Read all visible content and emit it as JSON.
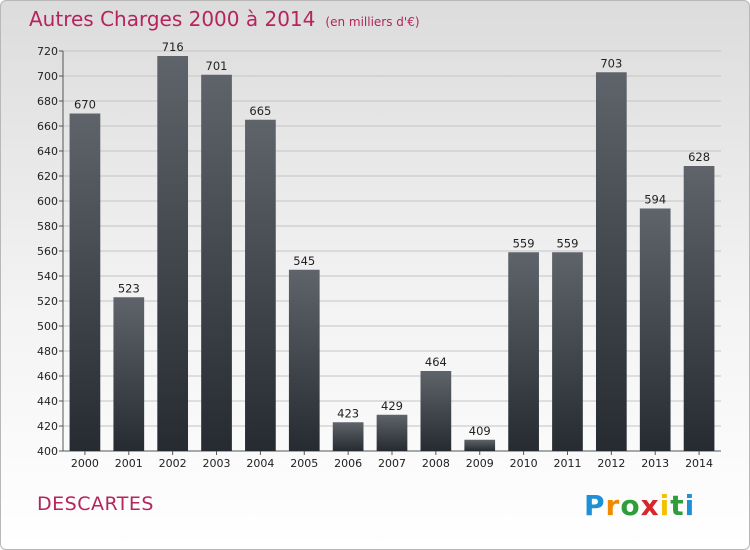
{
  "chart_data": {
    "type": "bar",
    "title": "Autres Charges 2000 à 2014",
    "subtitle": "(en milliers d'€)",
    "categories": [
      "2000",
      "2001",
      "2002",
      "2003",
      "2004",
      "2005",
      "2006",
      "2007",
      "2008",
      "2009",
      "2010",
      "2011",
      "2012",
      "2013",
      "2014"
    ],
    "values": [
      670,
      523,
      716,
      701,
      665,
      545,
      423,
      429,
      464,
      409,
      559,
      559,
      703,
      594,
      628
    ],
    "ylim": [
      400,
      720
    ],
    "yticks": [
      400,
      420,
      440,
      460,
      480,
      500,
      520,
      540,
      560,
      580,
      600,
      620,
      640,
      660,
      680,
      700,
      720
    ],
    "grid": true,
    "bar_color_top": "#5f646b",
    "bar_color_bottom": "#262b31",
    "title_color": "#b5245c"
  },
  "place": "DESCARTES",
  "logo": {
    "letters": [
      "P",
      "r",
      "o",
      "x",
      "i",
      "t",
      "i"
    ],
    "colors": [
      "#1f8fd6",
      "#f08a00",
      "#2f9e3a",
      "#d8262c",
      "#f2c200",
      "#2f9e3a",
      "#1f8fd6"
    ]
  }
}
